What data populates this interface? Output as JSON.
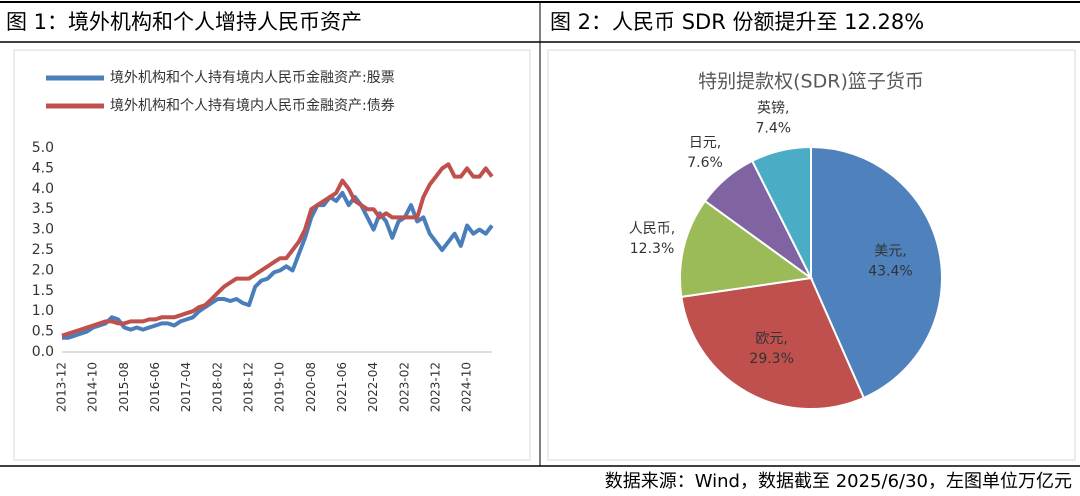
{
  "figure_titles": [
    "图 1：境外机构和个人增持人民币资产",
    "图 2：人民币 SDR 份额提升至 12.28%"
  ],
  "source": "数据来源：Wind，数据截至 2025/6/30，左图单位万亿元",
  "chart_data": [
    {
      "type": "line",
      "categories": [
        "2013-12",
        null,
        null,
        null,
        null,
        "2014-10",
        null,
        null,
        null,
        null,
        "2015-08",
        null,
        null,
        null,
        null,
        "2016-06",
        null,
        null,
        null,
        null,
        "2017-04",
        null,
        null,
        null,
        null,
        "2018-02",
        null,
        null,
        null,
        null,
        "2018-12",
        null,
        null,
        null,
        null,
        "2019-10",
        null,
        null,
        null,
        null,
        "2020-08",
        null,
        null,
        null,
        null,
        "2021-06",
        null,
        null,
        null,
        null,
        "2022-04",
        null,
        null,
        null,
        null,
        "2023-02",
        null,
        null,
        null,
        null,
        "2023-12",
        null,
        null,
        null,
        null,
        "2024-10",
        null,
        null,
        null,
        null
      ],
      "series": [
        {
          "name": "境外机构和个人持有境内人民币金融资产:股票",
          "color": "#4a7ebb",
          "values": [
            0.35,
            0.35,
            0.4,
            0.45,
            0.5,
            0.6,
            0.65,
            0.7,
            0.85,
            0.8,
            0.6,
            0.55,
            0.6,
            0.55,
            0.6,
            0.65,
            0.7,
            0.7,
            0.65,
            0.75,
            0.8,
            0.85,
            1.0,
            1.1,
            1.2,
            1.3,
            1.3,
            1.25,
            1.3,
            1.2,
            1.15,
            1.6,
            1.75,
            1.8,
            1.95,
            2.0,
            2.1,
            2.0,
            2.4,
            2.8,
            3.3,
            3.6,
            3.6,
            3.8,
            3.7,
            3.9,
            3.6,
            3.8,
            3.6,
            3.3,
            3.0,
            3.4,
            3.2,
            2.8,
            3.2,
            3.3,
            3.6,
            3.2,
            3.3,
            2.9,
            2.7,
            2.5,
            2.7,
            2.9,
            2.6,
            3.1,
            2.9,
            3.0,
            2.9,
            3.1
          ]
        },
        {
          "name": "境外机构和个人持有境内人民币金融资产:债券",
          "color": "#c0504d",
          "values": [
            0.4,
            0.45,
            0.5,
            0.55,
            0.6,
            0.65,
            0.7,
            0.75,
            0.75,
            0.7,
            0.7,
            0.75,
            0.75,
            0.75,
            0.8,
            0.8,
            0.85,
            0.85,
            0.85,
            0.9,
            0.95,
            1.0,
            1.1,
            1.15,
            1.3,
            1.45,
            1.6,
            1.7,
            1.8,
            1.8,
            1.8,
            1.9,
            2.0,
            2.1,
            2.2,
            2.3,
            2.3,
            2.5,
            2.7,
            3.0,
            3.5,
            3.6,
            3.7,
            3.8,
            3.9,
            4.2,
            4.0,
            3.7,
            3.6,
            3.5,
            3.5,
            3.3,
            3.4,
            3.3,
            3.3,
            3.3,
            3.3,
            3.3,
            3.8,
            4.1,
            4.3,
            4.5,
            4.6,
            4.3,
            4.3,
            4.5,
            4.3,
            4.3,
            4.5,
            4.3
          ]
        }
      ],
      "ylim": [
        0,
        5
      ],
      "yticks": [
        {
          "value": 0,
          "label": "0.0"
        },
        {
          "value": 0.5,
          "label": "0.5"
        },
        {
          "value": 1,
          "label": "1.0"
        },
        {
          "value": 1.5,
          "label": "1.5"
        },
        {
          "value": 2,
          "label": "2.0"
        },
        {
          "value": 2.5,
          "label": "2.5"
        },
        {
          "value": 3,
          "label": "3.0"
        },
        {
          "value": 3.5,
          "label": "3.5"
        },
        {
          "value": 4,
          "label": "4.0"
        },
        {
          "value": 4.5,
          "label": "4.5"
        },
        {
          "value": 5,
          "label": "5.0"
        }
      ]
    },
    {
      "type": "pie",
      "title": "特别提款权(SDR)篮子货币",
      "categories": [
        "美元,",
        "欧元,",
        "人民币,",
        "日元,",
        "英镑,"
      ],
      "values": [
        43.4,
        29.3,
        12.3,
        7.6,
        7.4
      ],
      "value_labels": [
        "43.4%",
        "29.3%",
        "12.3%",
        "7.6%",
        "7.4%"
      ],
      "colors": [
        "#4f81bd",
        "#c0504d",
        "#9bbb59",
        "#8064a2",
        "#4bacc6"
      ]
    }
  ]
}
